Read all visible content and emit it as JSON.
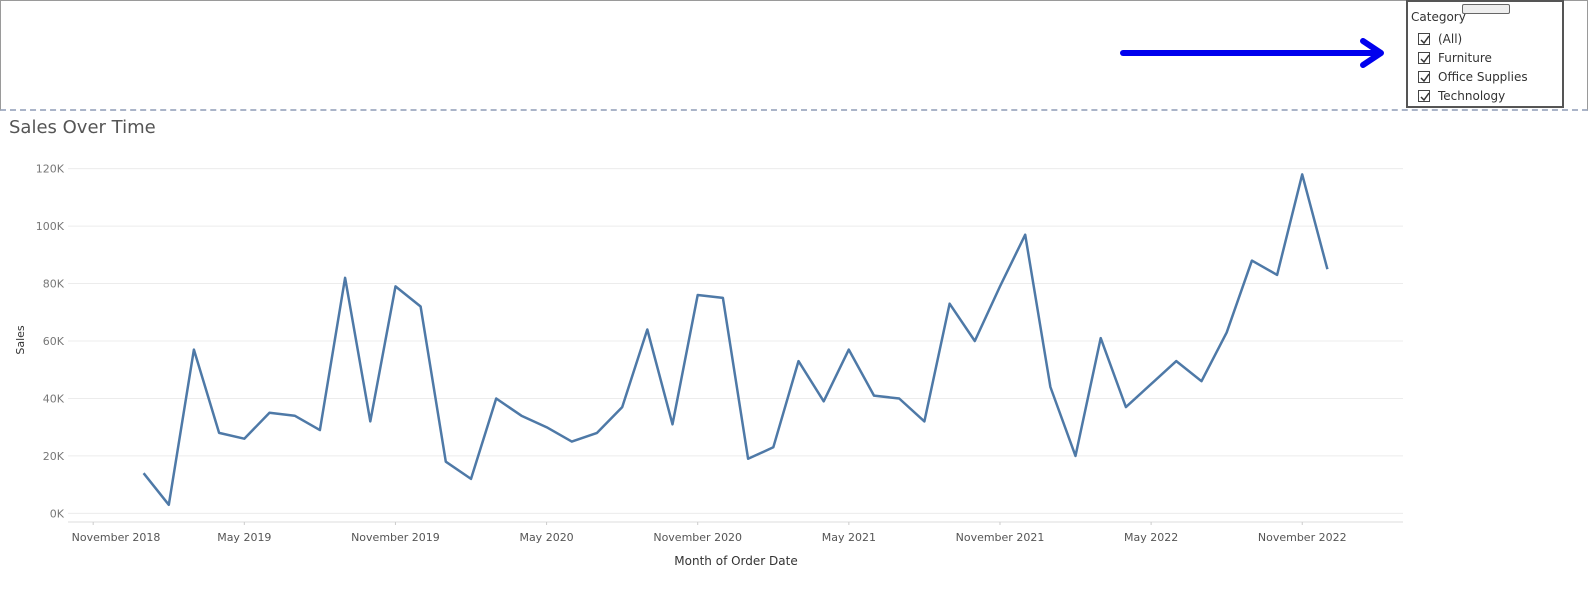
{
  "filter": {
    "title": "Category",
    "options": [
      "(All)",
      "Furniture",
      "Office Supplies",
      "Technology"
    ]
  },
  "chart_data": {
    "type": "line",
    "title": "Sales Over Time",
    "x_label": "Month of Order Date",
    "y_label": "Sales",
    "x": [
      "2019-01",
      "2019-02",
      "2019-03",
      "2019-04",
      "2019-05",
      "2019-06",
      "2019-07",
      "2019-08",
      "2019-09",
      "2019-10",
      "2019-11",
      "2019-12",
      "2020-01",
      "2020-02",
      "2020-03",
      "2020-04",
      "2020-05",
      "2020-06",
      "2020-07",
      "2020-08",
      "2020-09",
      "2020-10",
      "2020-11",
      "2020-12",
      "2021-01",
      "2021-02",
      "2021-03",
      "2021-04",
      "2021-05",
      "2021-06",
      "2021-07",
      "2021-08",
      "2021-09",
      "2021-10",
      "2021-11",
      "2021-12",
      "2022-01",
      "2022-02",
      "2022-03",
      "2022-04",
      "2022-05",
      "2022-06",
      "2022-07",
      "2022-08",
      "2022-09",
      "2022-10",
      "2022-11",
      "2022-12"
    ],
    "series": [
      {
        "name": "Sales",
        "color": "#4e79a7",
        "values": [
          14000,
          3000,
          57000,
          28000,
          26000,
          35000,
          34000,
          29000,
          82000,
          32000,
          79000,
          72000,
          18000,
          12000,
          40000,
          34000,
          30000,
          25000,
          28000,
          37000,
          64000,
          31000,
          76000,
          75000,
          19000,
          23000,
          53000,
          39000,
          57000,
          41000,
          40000,
          32000,
          73000,
          60000,
          79000,
          97000,
          44000,
          20000,
          61000,
          37000,
          45000,
          53000,
          46000,
          63000,
          88000,
          83000,
          118000,
          85000
        ]
      }
    ],
    "xlim": [
      "2018-10",
      "2023-03"
    ],
    "xticks": [
      {
        "value": "2018-11",
        "label": "November 2018"
      },
      {
        "value": "2019-05",
        "label": "May 2019"
      },
      {
        "value": "2019-11",
        "label": "November 2019"
      },
      {
        "value": "2020-05",
        "label": "May 2020"
      },
      {
        "value": "2020-11",
        "label": "November 2020"
      },
      {
        "value": "2021-05",
        "label": "May 2021"
      },
      {
        "value": "2021-11",
        "label": "November 2021"
      },
      {
        "value": "2022-05",
        "label": "May 2022"
      },
      {
        "value": "2022-11",
        "label": "November 2022"
      }
    ],
    "ylim": [
      -3000,
      123000
    ],
    "yticks": [
      {
        "value": 0,
        "label": "0K"
      },
      {
        "value": 20000,
        "label": "20K"
      },
      {
        "value": 40000,
        "label": "40K"
      },
      {
        "value": 60000,
        "label": "60K"
      },
      {
        "value": 80000,
        "label": "80K"
      },
      {
        "value": 100000,
        "label": "100K"
      },
      {
        "value": 120000,
        "label": "120K"
      }
    ],
    "grid": true
  }
}
